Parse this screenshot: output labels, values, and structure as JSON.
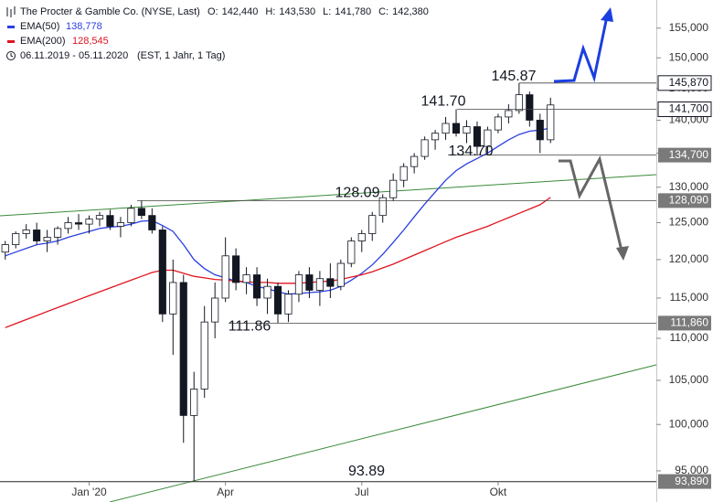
{
  "chart_data": {
    "type": "candlestick",
    "title": "The Procter & Gamble Co. (NYSE, Last)",
    "quote": [
      {
        "label": "O:",
        "text": "142,440"
      },
      {
        "label": "H:",
        "text": "143,530"
      },
      {
        "label": "L:",
        "text": "141,780"
      },
      {
        "label": "C:",
        "text": "142,380"
      }
    ],
    "range_text": "06.11.2019 - 05.11.2020",
    "range_note": "(EST, 1 Jahr, 1 Tag)",
    "log": true,
    "ylim": [
      93850,
      159900
    ],
    "yticks": [
      {
        "value": 95000,
        "label": "95,000"
      },
      {
        "value": 100000,
        "label": "100,000"
      },
      {
        "value": 105000,
        "label": "105,000"
      },
      {
        "value": 110000,
        "label": "110,000"
      },
      {
        "value": 115000,
        "label": "115,000"
      },
      {
        "value": 120000,
        "label": "120,000"
      },
      {
        "value": 125000,
        "label": "125,000"
      },
      {
        "value": 130000,
        "label": "130,000"
      },
      {
        "value": 135000,
        "label": "135,000"
      },
      {
        "value": 140000,
        "label": "140,000"
      },
      {
        "value": 145000,
        "label": "145,000"
      },
      {
        "value": 150000,
        "label": "150,000"
      },
      {
        "value": 155000,
        "label": "155,000"
      }
    ],
    "categories": [
      null,
      null,
      null,
      null,
      null,
      null,
      null,
      null,
      "Jan '20",
      null,
      null,
      null,
      null,
      null,
      null,
      null,
      null,
      null,
      null,
      null,
      null,
      "Apr",
      null,
      null,
      null,
      null,
      null,
      null,
      null,
      null,
      null,
      null,
      null,
      null,
      "Jul",
      null,
      null,
      null,
      null,
      null,
      null,
      null,
      null,
      null,
      null,
      null,
      null,
      "Okt",
      null,
      null,
      null,
      null,
      null
    ],
    "open": [
      121000,
      122000,
      123500,
      124000,
      122500,
      123000,
      124200,
      125000,
      124800,
      125500,
      126000,
      124500,
      125000,
      127000,
      126000,
      124000,
      113000,
      117000,
      101000,
      104000,
      112000,
      115000,
      120500,
      117000,
      118000,
      115000,
      116500,
      113000,
      115500,
      118000,
      116000,
      117500,
      116500,
      119500,
      122500,
      123500,
      126000,
      128500,
      131000,
      133000,
      134500,
      137000,
      138000,
      139500,
      138000,
      139000,
      136000,
      138500,
      140500,
      141500,
      144000,
      140000,
      137000
    ],
    "high": [
      122500,
      123800,
      124800,
      125000,
      124000,
      124500,
      125800,
      126200,
      126000,
      126500,
      126800,
      125800,
      127500,
      128090,
      127000,
      124500,
      120000,
      118000,
      106000,
      114000,
      117000,
      123000,
      121500,
      119000,
      119000,
      117500,
      117000,
      116000,
      118500,
      119000,
      118500,
      119500,
      120000,
      123000,
      124000,
      126500,
      129000,
      132000,
      133500,
      135000,
      137500,
      138500,
      140500,
      141700,
      140000,
      139800,
      139000,
      141000,
      142500,
      145870,
      144500,
      141000,
      143530
    ],
    "low": [
      120000,
      121500,
      122800,
      122000,
      121000,
      122000,
      123500,
      124000,
      123500,
      124500,
      124000,
      123000,
      124500,
      125500,
      123500,
      112000,
      108000,
      98000,
      93890,
      103000,
      110000,
      114500,
      116000,
      115500,
      114000,
      113000,
      111860,
      112000,
      114500,
      115000,
      114000,
      115000,
      116000,
      119000,
      121000,
      122500,
      125000,
      128000,
      130000,
      132000,
      134000,
      135500,
      137000,
      137500,
      136500,
      134700,
      135000,
      138000,
      139500,
      141000,
      139000,
      135000,
      136500
    ],
    "close": [
      122000,
      123500,
      124000,
      122500,
      123000,
      124200,
      125000,
      124800,
      125500,
      126000,
      124500,
      125000,
      127000,
      126000,
      124000,
      113000,
      117000,
      101000,
      104000,
      112000,
      115000,
      120500,
      117000,
      118000,
      115000,
      116500,
      113000,
      115500,
      118000,
      116000,
      117500,
      116500,
      119500,
      122500,
      123500,
      126000,
      128500,
      131000,
      133000,
      134500,
      137000,
      138000,
      139500,
      138000,
      139000,
      136000,
      138500,
      140500,
      141500,
      144000,
      140000,
      137000,
      142380
    ],
    "series": [
      {
        "name": "EMA(50)",
        "color": "#2a3fe0",
        "last_label": "138,778",
        "values": [
          120500,
          121000,
          121500,
          122000,
          122200,
          122500,
          123000,
          123400,
          123800,
          124200,
          124400,
          124500,
          124800,
          125200,
          125300,
          124600,
          123800,
          122000,
          120000,
          118800,
          118000,
          117600,
          117200,
          117000,
          116500,
          116200,
          115800,
          115500,
          115600,
          115700,
          115800,
          116000,
          116500,
          117300,
          118200,
          119300,
          120700,
          122300,
          124000,
          125800,
          127600,
          129300,
          131000,
          132400,
          133400,
          134200,
          135000,
          136000,
          137000,
          137800,
          138300,
          138500,
          138778
        ]
      },
      {
        "name": "EMA(200)",
        "color": "#e0141e",
        "last_label": "128,545",
        "values": [
          111300,
          111800,
          112300,
          112800,
          113300,
          113800,
          114300,
          114800,
          115300,
          115800,
          116300,
          116800,
          117300,
          117800,
          118300,
          118600,
          118600,
          118200,
          117800,
          117600,
          117400,
          117300,
          117200,
          117100,
          117000,
          117000,
          116900,
          116900,
          116900,
          117000,
          117100,
          117200,
          117400,
          117700,
          118000,
          118400,
          118900,
          119400,
          120000,
          120600,
          121200,
          121800,
          122400,
          123000,
          123500,
          124000,
          124500,
          125100,
          125700,
          126300,
          126900,
          127500,
          128545
        ]
      }
    ],
    "levels": [
      {
        "value": 145870,
        "axis_label": "145,870",
        "chart_label": "145.87"
      },
      {
        "value": 141700,
        "axis_label": "141,700",
        "chart_label": "141.70"
      },
      {
        "value": 134700,
        "axis_label": "134,700",
        "chart_label": "134.70"
      },
      {
        "value": 128090,
        "axis_label": "128,090",
        "chart_label": "128.09"
      },
      {
        "value": 111860,
        "axis_label": "111,860",
        "chart_label": "111.86"
      },
      {
        "value": 93890,
        "axis_label": "93,890",
        "chart_label": "93.89"
      }
    ]
  }
}
